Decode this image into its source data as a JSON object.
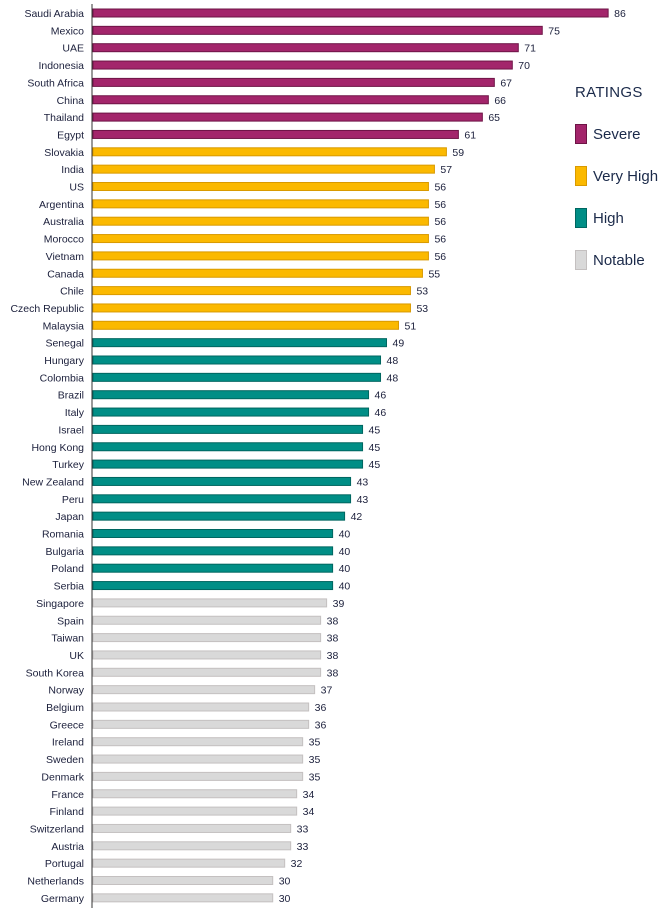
{
  "chart_data": {
    "type": "bar",
    "orientation": "horizontal",
    "title": "",
    "xlabel": "",
    "ylabel": "",
    "xlim": [
      0,
      86
    ],
    "grid": false,
    "legend_placement": "right",
    "categories": [
      "Saudi Arabia",
      "Mexico",
      "UAE",
      "Indonesia",
      "South Africa",
      "China",
      "Thailand",
      "Egypt",
      "Slovakia",
      "India",
      "US",
      "Argentina",
      "Australia",
      "Morocco",
      "Vietnam",
      "Canada",
      "Chile",
      "Czech Republic",
      "Malaysia",
      "Senegal",
      "Hungary",
      "Colombia",
      "Brazil",
      "Italy",
      "Israel",
      "Hong Kong",
      "Turkey",
      "New Zealand",
      "Peru",
      "Japan",
      "Romania",
      "Bulgaria",
      "Poland",
      "Serbia",
      "Singapore",
      "Spain",
      "Taiwan",
      "UK",
      "South Korea",
      "Norway",
      "Belgium",
      "Greece",
      "Ireland",
      "Sweden",
      "Denmark",
      "France",
      "Finland",
      "Switzerland",
      "Austria",
      "Portugal",
      "Netherlands",
      "Germany"
    ],
    "values": [
      86,
      75,
      71,
      70,
      67,
      66,
      65,
      61,
      59,
      57,
      56,
      56,
      56,
      56,
      56,
      55,
      53,
      53,
      51,
      49,
      48,
      48,
      46,
      46,
      45,
      45,
      45,
      43,
      43,
      42,
      40,
      40,
      40,
      40,
      39,
      38,
      38,
      38,
      38,
      37,
      36,
      36,
      35,
      35,
      35,
      34,
      34,
      33,
      33,
      32,
      30,
      30
    ],
    "ratings": [
      "Severe",
      "Severe",
      "Severe",
      "Severe",
      "Severe",
      "Severe",
      "Severe",
      "Severe",
      "Very High",
      "Very High",
      "Very High",
      "Very High",
      "Very High",
      "Very High",
      "Very High",
      "Very High",
      "Very High",
      "Very High",
      "Very High",
      "High",
      "High",
      "High",
      "High",
      "High",
      "High",
      "High",
      "High",
      "High",
      "High",
      "High",
      "High",
      "High",
      "High",
      "High",
      "Notable",
      "Notable",
      "Notable",
      "Notable",
      "Notable",
      "Notable",
      "Notable",
      "Notable",
      "Notable",
      "Notable",
      "Notable",
      "Notable",
      "Notable",
      "Notable",
      "Notable",
      "Notable",
      "Notable",
      "Notable"
    ]
  },
  "legend": {
    "title": "RATINGS",
    "items": [
      {
        "label": "Severe",
        "color": "#A3256B",
        "border": "#6e1446"
      },
      {
        "label": "Very High",
        "color": "#FBB900",
        "border": "#d99a00"
      },
      {
        "label": "High",
        "color": "#008E86",
        "border": "#006660"
      },
      {
        "label": "Notable",
        "color": "#D9D9D9",
        "border": "#c4c0c0"
      }
    ]
  }
}
